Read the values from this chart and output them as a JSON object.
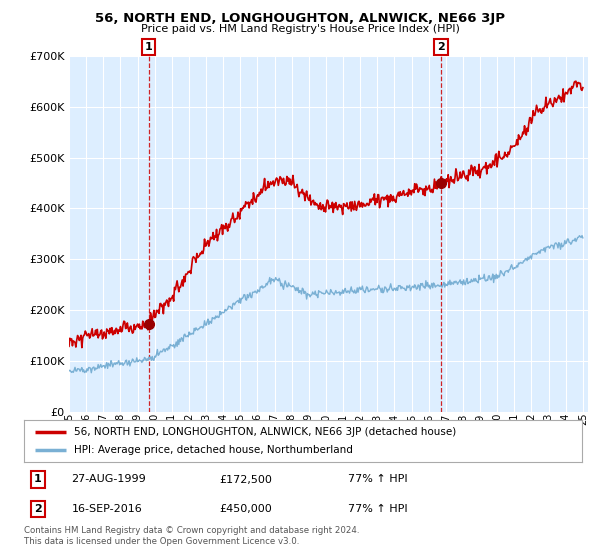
{
  "title": "56, NORTH END, LONGHOUGHTON, ALNWICK, NE66 3JP",
  "subtitle": "Price paid vs. HM Land Registry's House Price Index (HPI)",
  "legend_line1": "56, NORTH END, LONGHOUGHTON, ALNWICK, NE66 3JP (detached house)",
  "legend_line2": "HPI: Average price, detached house, Northumberland",
  "annotation1_date": "27-AUG-1999",
  "annotation1_price": "£172,500",
  "annotation1_hpi": "77% ↑ HPI",
  "annotation2_date": "16-SEP-2016",
  "annotation2_price": "£450,000",
  "annotation2_hpi": "77% ↑ HPI",
  "footnote": "Contains HM Land Registry data © Crown copyright and database right 2024.\nThis data is licensed under the Open Government Licence v3.0.",
  "red_color": "#cc0000",
  "blue_color": "#7ab0d4",
  "chart_bg": "#ddeeff",
  "background_color": "#ffffff",
  "grid_color": "#ffffff",
  "ylim_min": 0,
  "ylim_max": 700000,
  "sale1_year": 1999.65,
  "sale1_price": 172500,
  "sale2_year": 2016.71,
  "sale2_price": 450000
}
